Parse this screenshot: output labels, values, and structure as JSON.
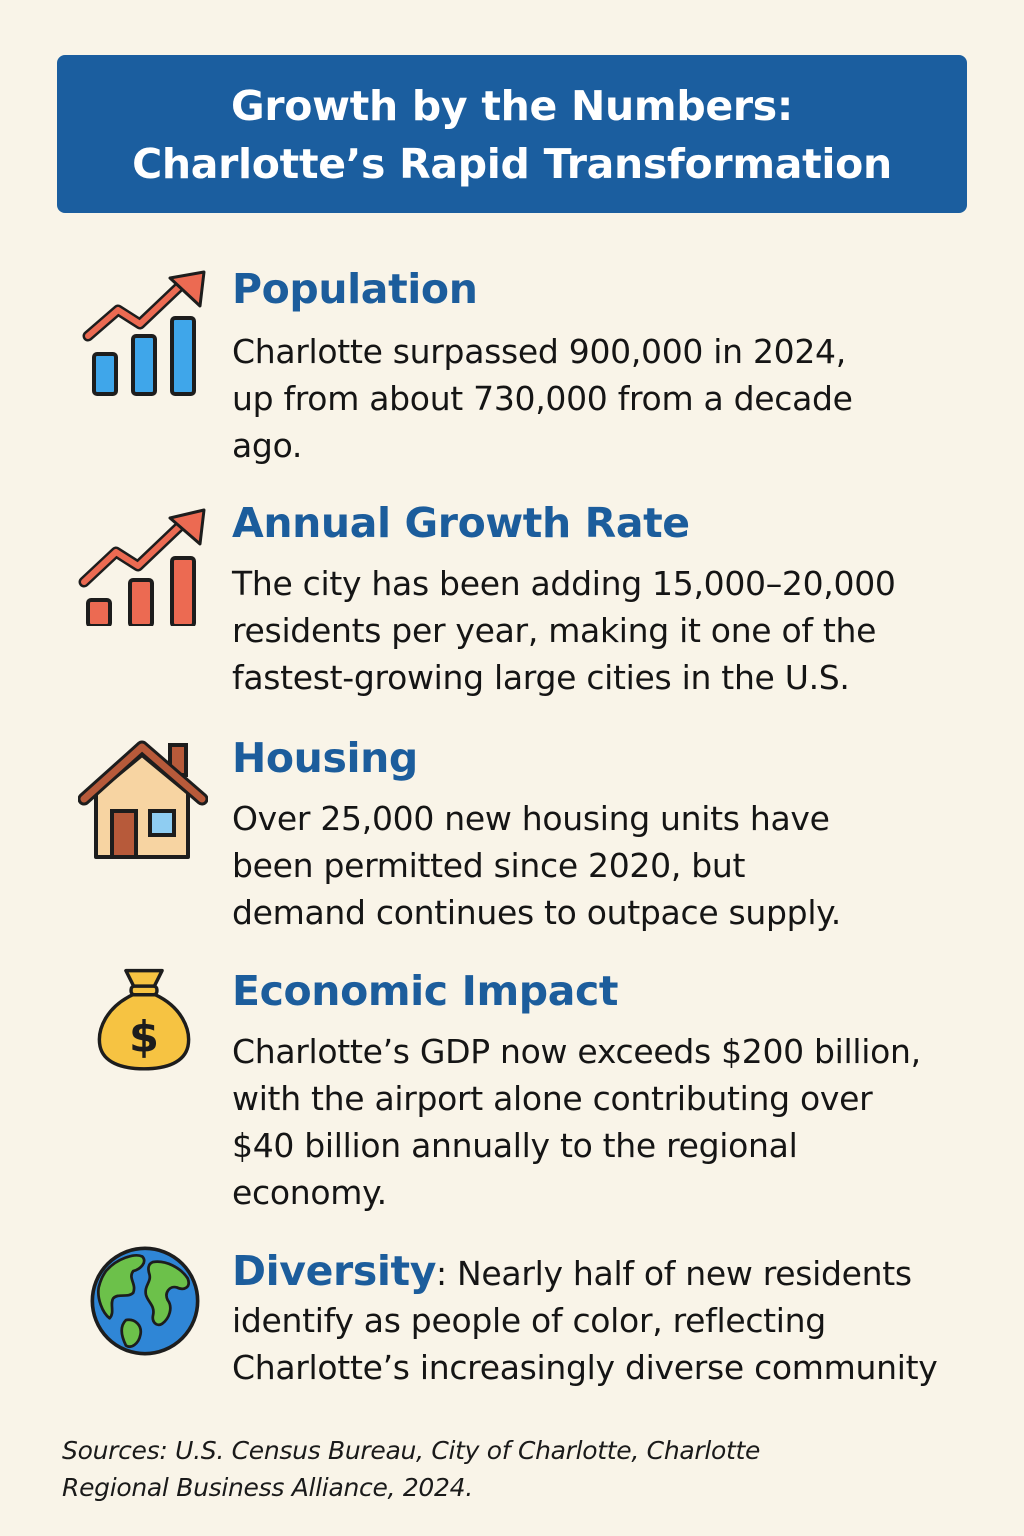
{
  "header": {
    "title_line1": "Growth by the Numbers:",
    "title_line2": "Charlotte’s Rapid Transformation"
  },
  "sections": [
    {
      "icon": "bar-chart-rising-arrow-icon",
      "heading": "Population",
      "lines": [
        "Charlotte surpassed 900,000 in 2024,",
        "up from about 730,000 from a decade",
        "ago."
      ]
    },
    {
      "icon": "bar-chart-growth-arrow-icon",
      "heading": "Annual Growth Rate",
      "lines": [
        "The city has been adding 15,000–20,000",
        "residents per year, making it one of the",
        "fastest-growing large cities in the U.S."
      ]
    },
    {
      "icon": "house-icon",
      "heading": "Housing",
      "lines": [
        "Over 25,000 new housing units have",
        "been permitted since 2020, but",
        "demand continues to outpace supply."
      ]
    },
    {
      "icon": "money-bag-icon",
      "heading": "Economic Impact",
      "lines": [
        "Charlotte’s GDP now exceeds $200 billion,",
        "with the airport alone contributing over",
        "$40 billion annually to the regional",
        "economy."
      ]
    },
    {
      "icon": "globe-icon",
      "heading": "Diversity",
      "separator": ":",
      "lines": [
        " Nearly half of new residents",
        "identify as people of color, reflecting",
        "Charlotte’s increasingly diverse community"
      ]
    }
  ],
  "footer": {
    "sources_line1": "Sources: U.S. Census Bureau, City of Charlotte, Charlotte",
    "sources_line2": "Regional Business Alliance, 2024."
  },
  "colors": {
    "background": "#f9f4e8",
    "banner": "#1b5e9f",
    "heading": "#1c5d9c",
    "blue_bars": "#3fa6ea",
    "red_accent": "#ec6a52",
    "coin_gold": "#f6c342",
    "globe_ocean": "#2f86d6",
    "globe_land": "#6cc14a"
  }
}
